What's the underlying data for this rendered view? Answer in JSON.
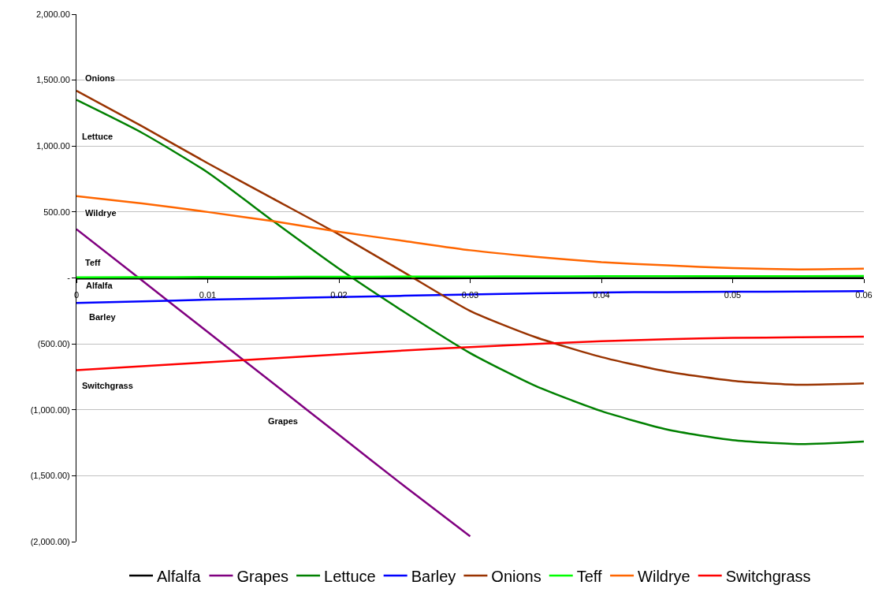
{
  "chart_data": {
    "type": "line",
    "x": [
      0,
      0.005,
      0.01,
      0.015,
      0.02,
      0.025,
      0.03,
      0.035,
      0.04,
      0.045,
      0.05,
      0.055,
      0.06
    ],
    "series": [
      {
        "name": "Alfalfa",
        "color": "#000000",
        "values": [
          -5,
          -5,
          -4,
          -4,
          -3,
          -3,
          -2,
          -2,
          -1,
          -1,
          0,
          0,
          0
        ]
      },
      {
        "name": "Grapes",
        "color": "#800080",
        "values": [
          370,
          -20,
          -410,
          -800,
          -1190,
          -1580,
          -1960,
          null,
          null,
          null,
          null,
          null,
          null
        ]
      },
      {
        "name": "Lettuce",
        "color": "#008000",
        "values": [
          1350,
          1100,
          800,
          430,
          70,
          -260,
          -570,
          -820,
          -1010,
          -1150,
          -1230,
          -1260,
          -1240
        ]
      },
      {
        "name": "Barley",
        "color": "#0000ff",
        "values": [
          -190,
          -178,
          -165,
          -155,
          -145,
          -135,
          -125,
          -117,
          -110,
          -107,
          -105,
          -103,
          -100
        ]
      },
      {
        "name": "Onions",
        "color": "#993300",
        "values": [
          1420,
          1150,
          870,
          600,
          330,
          40,
          -250,
          -450,
          -600,
          -710,
          -780,
          -810,
          -800
        ]
      },
      {
        "name": "Teff",
        "color": "#00ff00",
        "values": [
          5,
          6,
          7,
          8,
          9,
          10,
          11,
          12,
          13,
          13,
          14,
          14,
          15
        ]
      },
      {
        "name": "Wildrye",
        "color": "#ff6600",
        "values": [
          620,
          565,
          500,
          430,
          350,
          280,
          210,
          160,
          120,
          95,
          75,
          65,
          70
        ]
      },
      {
        "name": "Switchgrass",
        "color": "#ff0000",
        "values": [
          -700,
          -670,
          -640,
          -610,
          -580,
          -550,
          -525,
          -500,
          -480,
          -465,
          -455,
          -450,
          -445
        ]
      }
    ],
    "xlim": [
      0,
      0.06
    ],
    "xticks": [
      0,
      0.01,
      0.02,
      0.03,
      0.04,
      0.05,
      0.06
    ],
    "ylim": [
      -2000,
      2000
    ],
    "yticks": [
      {
        "value": -2000,
        "label": "(2,000.00)"
      },
      {
        "value": -1500,
        "label": "(1,500.00)"
      },
      {
        "value": -1000,
        "label": "(1,000.00)"
      },
      {
        "value": -500,
        "label": "(500.00)"
      },
      {
        "value": 0,
        "label": "-"
      },
      {
        "value": 500,
        "label": "500.00"
      },
      {
        "value": 1000,
        "label": "1,000.00"
      },
      {
        "value": 1500,
        "label": "1,500.00"
      },
      {
        "value": 2000,
        "label": "2,000.00"
      }
    ],
    "grid": "y",
    "legend": "bottom",
    "marker": "none",
    "line_style": "solid",
    "annotations": [
      "Onions",
      "Lettuce",
      "Wildrye",
      "Teff",
      "Alfalfa",
      "Barley",
      "Switchgrass",
      "Grapes"
    ]
  }
}
